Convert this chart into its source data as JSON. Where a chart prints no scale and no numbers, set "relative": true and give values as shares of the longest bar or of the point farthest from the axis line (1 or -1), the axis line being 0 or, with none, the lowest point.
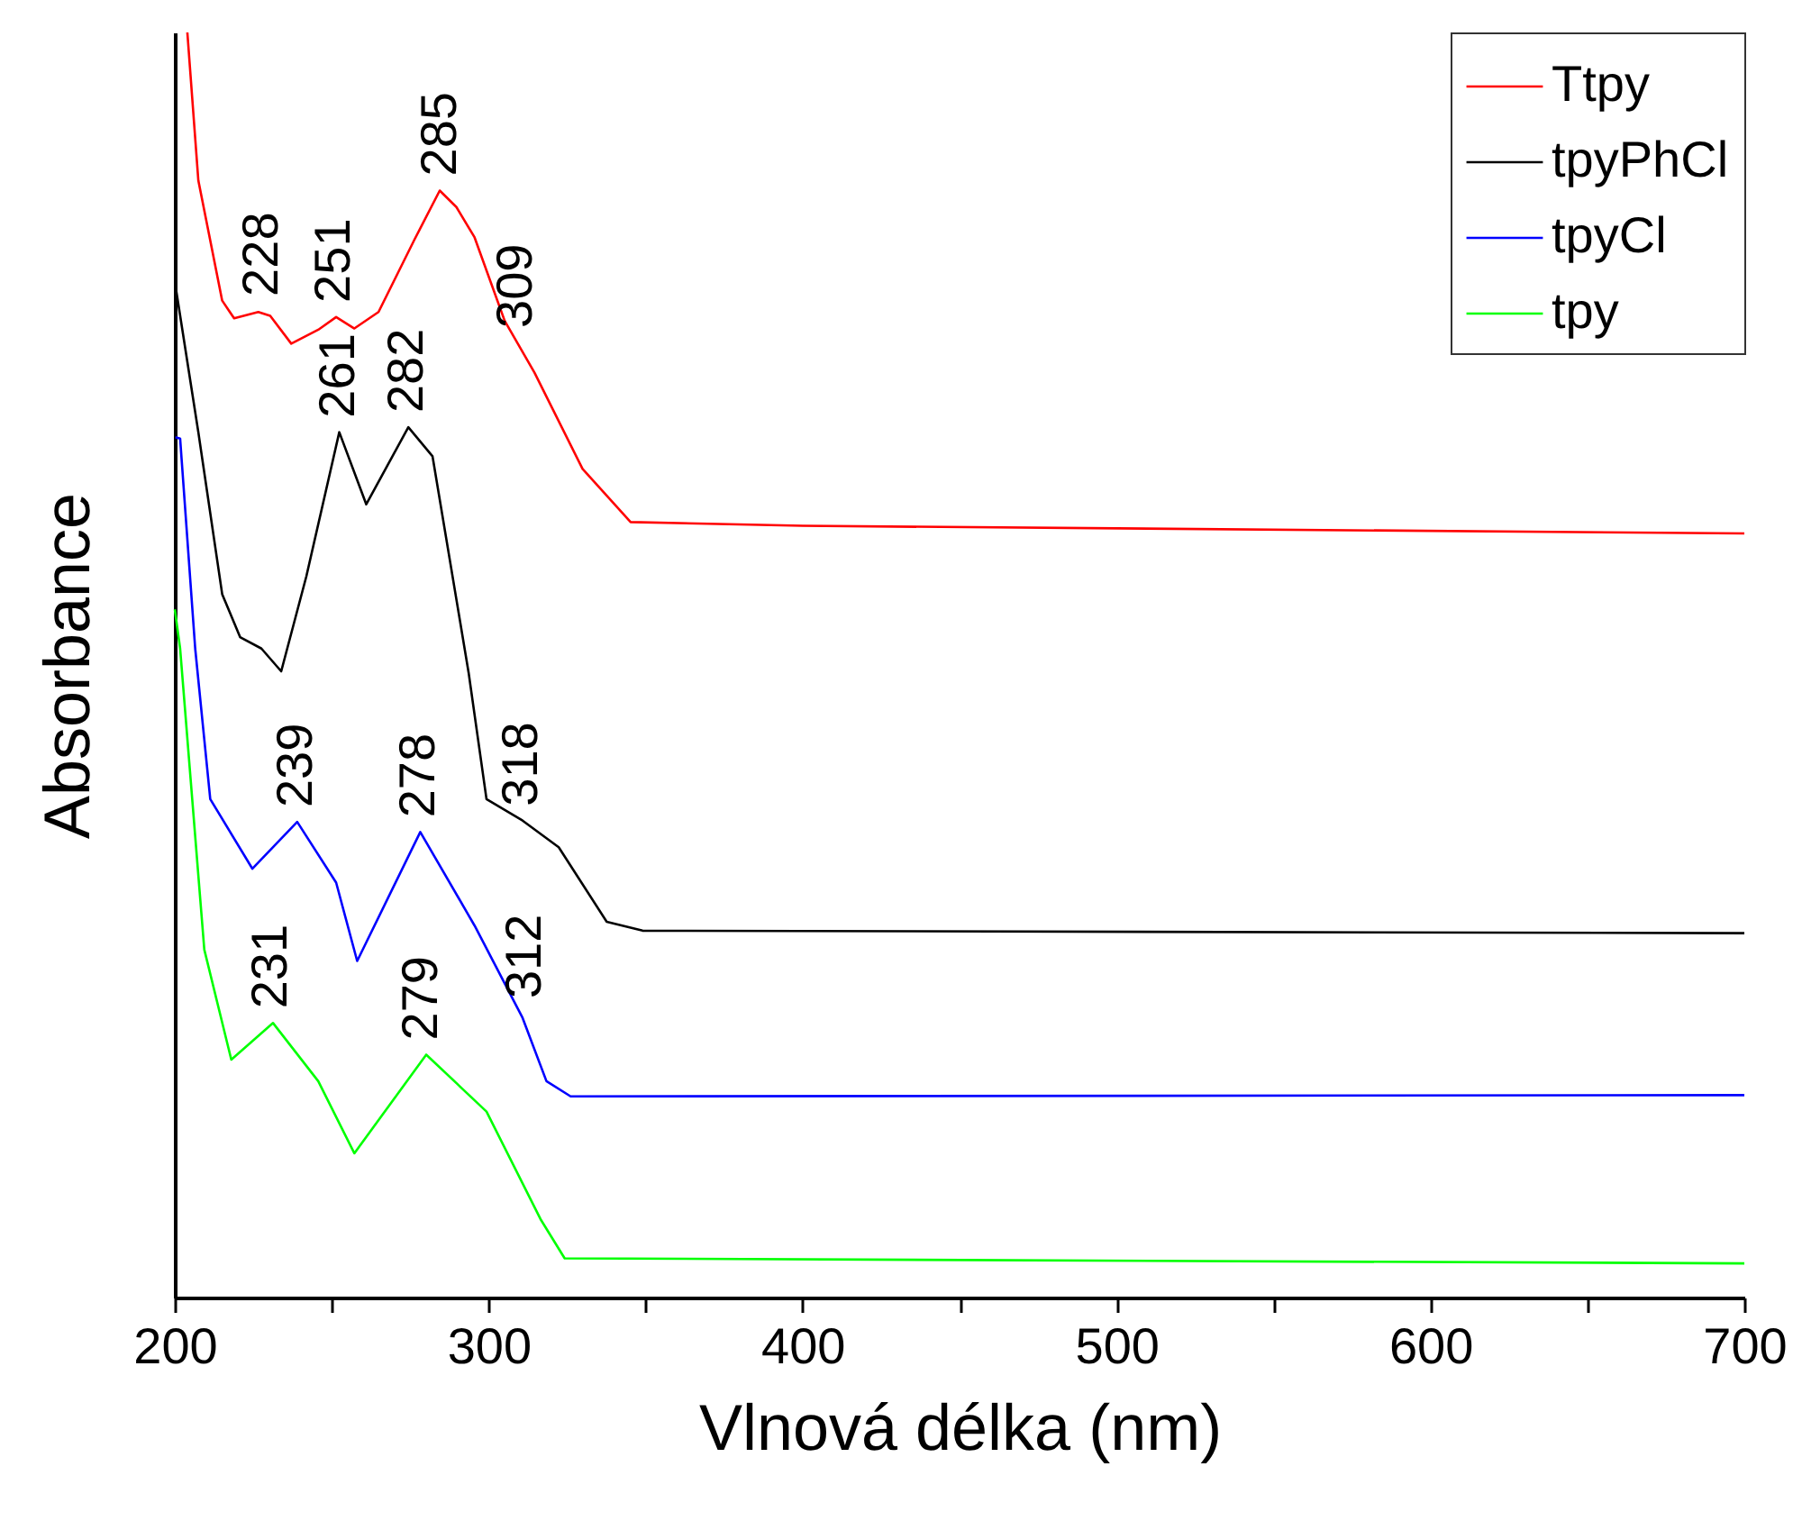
{
  "chart_data": {
    "type": "line",
    "relative": true,
    "xlabel": "Vlnová délka (nm)",
    "ylabel": "Absorbance",
    "xlim": [
      200,
      700
    ],
    "xticks": [
      200,
      {
        "value": 250,
        "label": null
      },
      300,
      {
        "value": 350,
        "label": null
      },
      400,
      {
        "value": 450,
        "label": null
      },
      500,
      {
        "value": 550,
        "label": null
      },
      600,
      {
        "value": 650,
        "label": null
      },
      700
    ],
    "legend": "top right",
    "grid": false,
    "marker": "none",
    "line_style": "solid",
    "series": [
      {
        "name": "Ttpy",
        "color": "#ff0000",
        "x": [
          204,
          207.5,
          215.1,
          218.9,
          226.6,
          230.4,
          237.1,
          245.7,
          251.4,
          257.2,
          264.9,
          276.3,
          284.4,
          289.7,
          295.5,
          305.1,
          314.6,
          329.9,
          345.2,
          400,
          700
        ],
        "values": [
          1.0,
          0.883,
          0.788,
          0.774,
          0.779,
          0.776,
          0.754,
          0.765,
          0.775,
          0.766,
          0.779,
          0.836,
          0.875,
          0.862,
          0.838,
          0.772,
          0.731,
          0.655,
          0.613,
          0.61,
          0.604
        ]
      },
      {
        "name": "tpyPhCl",
        "color": "#000000",
        "x": [
          200.2,
          207.5,
          215.1,
          220.8,
          227.6,
          233.9,
          241.9,
          252.4,
          261,
          274.4,
          282.1,
          293.6,
          299.3,
          310.8,
          322.3,
          337.6,
          349,
          700
        ],
        "values": [
          0.8,
          0.684,
          0.556,
          0.522,
          0.513,
          0.495,
          0.57,
          0.684,
          0.627,
          0.688,
          0.665,
          0.494,
          0.394,
          0.377,
          0.356,
          0.297,
          0.29,
          0.288
        ]
      },
      {
        "name": "tpyCl",
        "color": "#0000ff",
        "x": [
          200.2,
          201.7,
          206.5,
          211.3,
          224.7,
          239,
          251.4,
          258.1,
          278.2,
          295.5,
          310.8,
          318.4,
          326.1,
          700
        ],
        "values": [
          0.68,
          0.679,
          0.513,
          0.394,
          0.339,
          0.376,
          0.328,
          0.266,
          0.368,
          0.294,
          0.221,
          0.171,
          0.159,
          0.16
        ]
      },
      {
        "name": "tpy",
        "color": "#00ff00",
        "x": [
          200,
          201.7,
          209.4,
          218,
          231.3,
          245.7,
          257.2,
          280.1,
          299.3,
          316.5,
          324.2,
          700
        ],
        "values": [
          0.544,
          0.513,
          0.275,
          0.188,
          0.217,
          0.171,
          0.114,
          0.192,
          0.147,
          0.062,
          0.031,
          0.027
        ]
      }
    ],
    "annotations": [
      {
        "text": "228",
        "x": 228,
        "y": 0.78
      },
      {
        "text": "251",
        "x": 251,
        "y": 0.775
      },
      {
        "text": "285",
        "x": 285,
        "y": 0.875
      },
      {
        "text": "309",
        "x": 309,
        "y": 0.755
      },
      {
        "text": "261",
        "x": 252.4,
        "y": 0.684
      },
      {
        "text": "282",
        "x": 274.4,
        "y": 0.688
      },
      {
        "text": "318",
        "x": 310.8,
        "y": 0.377
      },
      {
        "text": "239",
        "x": 239,
        "y": 0.376
      },
      {
        "text": "278",
        "x": 278,
        "y": 0.368
      },
      {
        "text": "312",
        "x": 312,
        "y": 0.225
      },
      {
        "text": "231",
        "x": 231,
        "y": 0.217
      },
      {
        "text": "279",
        "x": 279,
        "y": 0.192
      }
    ]
  }
}
